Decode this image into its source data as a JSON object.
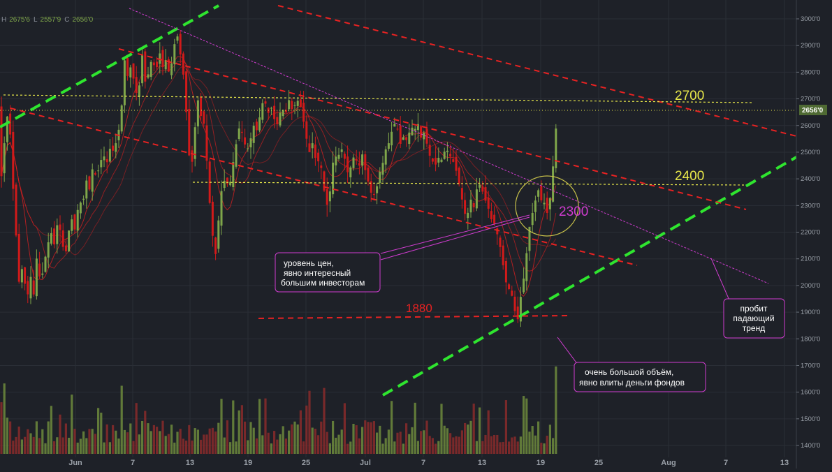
{
  "ohlc": {
    "h_label": "H",
    "h": "2675'6",
    "l_label": "L",
    "l": "2557'9",
    "c_label": "C",
    "c": "2656'0"
  },
  "colors": {
    "background": "#1e2128",
    "grid": "#2a2e36",
    "candle_up": "#7fa64a",
    "candle_down": "#d11a1a",
    "ma": "#e02020",
    "trend_green": "#2fe52f",
    "trend_red": "#e82222",
    "level_yellow": "#e8e84a",
    "magenta": "#d03cd0",
    "price_tag": "#4f6a33"
  },
  "chart_data": {
    "type": "candlestick",
    "title": "",
    "xlabel": "",
    "ylabel": "",
    "ylim": [
      1340,
      3040
    ],
    "y_ticks": [
      "3000'0",
      "2900'0",
      "2800'0",
      "2700'0",
      "2600'0",
      "2500'0",
      "2400'0",
      "2300'0",
      "2200'0",
      "2100'0",
      "2000'0",
      "1900'0",
      "1800'0",
      "1700'0",
      "1600'0",
      "1500'0",
      "1400'0"
    ],
    "x_ticks": [
      "Jun",
      "7",
      "13",
      "19",
      "25",
      "Jul",
      "7",
      "13",
      "19",
      "25",
      "Aug",
      "7",
      "13"
    ],
    "last_price": 2656,
    "last_price_label": "2656'0",
    "price_path": [
      [
        0,
        2350
      ],
      [
        5,
        2500
      ],
      [
        10,
        2640
      ],
      [
        15,
        2560
      ],
      [
        20,
        2300
      ],
      [
        24,
        2150
      ],
      [
        28,
        1980
      ],
      [
        33,
        2100
      ],
      [
        38,
        1920
      ],
      [
        43,
        2050
      ],
      [
        48,
        1960
      ],
      [
        53,
        2120
      ],
      [
        58,
        2000
      ],
      [
        63,
        2080
      ],
      [
        68,
        2150
      ],
      [
        73,
        2200
      ],
      [
        78,
        2150
      ],
      [
        83,
        2250
      ],
      [
        88,
        2180
      ],
      [
        93,
        2100
      ],
      [
        98,
        2200
      ],
      [
        103,
        2250
      ],
      [
        108,
        2200
      ],
      [
        113,
        2330
      ],
      [
        118,
        2290
      ],
      [
        123,
        2400
      ],
      [
        128,
        2360
      ],
      [
        133,
        2450
      ],
      [
        138,
        2400
      ],
      [
        143,
        2460
      ],
      [
        148,
        2490
      ],
      [
        153,
        2460
      ],
      [
        158,
        2520
      ],
      [
        163,
        2500
      ],
      [
        168,
        2560
      ],
      [
        173,
        2620
      ],
      [
        178,
        2850
      ],
      [
        183,
        2780
      ],
      [
        188,
        2830
      ],
      [
        193,
        2740
      ],
      [
        198,
        2700
      ],
      [
        203,
        2880
      ],
      [
        208,
        2760
      ],
      [
        213,
        2800
      ],
      [
        218,
        2860
      ],
      [
        223,
        2790
      ],
      [
        228,
        2880
      ],
      [
        233,
        2820
      ],
      [
        238,
        2850
      ],
      [
        243,
        2780
      ],
      [
        248,
        2880
      ],
      [
        253,
        2950
      ],
      [
        258,
        2870
      ],
      [
        263,
        2780
      ],
      [
        268,
        2600
      ],
      [
        273,
        2400
      ],
      [
        278,
        2560
      ],
      [
        283,
        2700
      ],
      [
        288,
        2630
      ],
      [
        293,
        2600
      ],
      [
        298,
        2380
      ],
      [
        303,
        2220
      ],
      [
        308,
        2100
      ],
      [
        313,
        2250
      ],
      [
        318,
        2380
      ],
      [
        323,
        2400
      ],
      [
        328,
        2360
      ],
      [
        333,
        2450
      ],
      [
        338,
        2530
      ],
      [
        343,
        2600
      ],
      [
        348,
        2560
      ],
      [
        353,
        2500
      ],
      [
        358,
        2540
      ],
      [
        363,
        2600
      ],
      [
        368,
        2580
      ],
      [
        373,
        2650
      ],
      [
        378,
        2710
      ],
      [
        383,
        2640
      ],
      [
        388,
        2670
      ],
      [
        393,
        2620
      ],
      [
        398,
        2600
      ],
      [
        403,
        2680
      ],
      [
        408,
        2630
      ],
      [
        413,
        2700
      ],
      [
        418,
        2660
      ],
      [
        423,
        2680
      ],
      [
        428,
        2700
      ],
      [
        433,
        2640
      ],
      [
        438,
        2560
      ],
      [
        443,
        2500
      ],
      [
        448,
        2540
      ],
      [
        453,
        2450
      ],
      [
        458,
        2480
      ],
      [
        463,
        2370
      ],
      [
        468,
        2300
      ],
      [
        473,
        2360
      ],
      [
        478,
        2500
      ],
      [
        483,
        2470
      ],
      [
        488,
        2520
      ],
      [
        493,
        2480
      ],
      [
        498,
        2420
      ],
      [
        503,
        2450
      ],
      [
        508,
        2500
      ],
      [
        513,
        2430
      ],
      [
        518,
        2500
      ],
      [
        523,
        2430
      ],
      [
        528,
        2380
      ],
      [
        533,
        2330
      ],
      [
        538,
        2350
      ],
      [
        543,
        2420
      ],
      [
        548,
        2460
      ],
      [
        553,
        2520
      ],
      [
        558,
        2540
      ],
      [
        563,
        2610
      ],
      [
        568,
        2600
      ],
      [
        573,
        2530
      ],
      [
        578,
        2560
      ],
      [
        583,
        2540
      ],
      [
        588,
        2600
      ],
      [
        593,
        2580
      ],
      [
        598,
        2610
      ],
      [
        603,
        2550
      ],
      [
        608,
        2580
      ],
      [
        613,
        2500
      ],
      [
        618,
        2470
      ],
      [
        623,
        2450
      ],
      [
        628,
        2480
      ],
      [
        633,
        2470
      ],
      [
        638,
        2520
      ],
      [
        643,
        2490
      ],
      [
        648,
        2470
      ],
      [
        653,
        2430
      ],
      [
        658,
        2370
      ],
      [
        663,
        2300
      ],
      [
        668,
        2240
      ],
      [
        673,
        2330
      ],
      [
        678,
        2290
      ],
      [
        683,
        2370
      ],
      [
        688,
        2380
      ],
      [
        693,
        2330
      ],
      [
        698,
        2300
      ],
      [
        703,
        2250
      ],
      [
        708,
        2230
      ],
      [
        713,
        2180
      ],
      [
        718,
        2120
      ],
      [
        723,
        2020
      ],
      [
        728,
        1990
      ],
      [
        733,
        1960
      ],
      [
        738,
        1890
      ],
      [
        741,
        1870
      ],
      [
        744,
        1920
      ],
      [
        747,
        2000
      ],
      [
        750,
        2030
      ],
      [
        753,
        2100
      ],
      [
        756,
        2180
      ],
      [
        759,
        2240
      ],
      [
        762,
        2270
      ],
      [
        765,
        2300
      ],
      [
        768,
        2340
      ],
      [
        771,
        2360
      ],
      [
        774,
        2330
      ],
      [
        777,
        2290
      ],
      [
        780,
        2320
      ],
      [
        783,
        2270
      ],
      [
        786,
        2300
      ],
      [
        789,
        2360
      ],
      [
        792,
        2460
      ],
      [
        795,
        2570
      ],
      [
        798,
        2640
      ],
      [
        800,
        2656
      ]
    ],
    "volume_ylim": [
      0,
      230
    ],
    "volume_last": 180,
    "annotations": {
      "level_2700": "2700",
      "level_2400": "2400",
      "level_2300": "2300",
      "level_1880": "1880",
      "note_investors": [
        "уровень цен,",
        "явно интересный",
        "большим инвесторам"
      ],
      "note_volume": [
        "очень большой объём,",
        "явно влиты деньги фондов"
      ],
      "note_breakout": [
        "пробит",
        "падающий",
        "тренд"
      ]
    }
  }
}
